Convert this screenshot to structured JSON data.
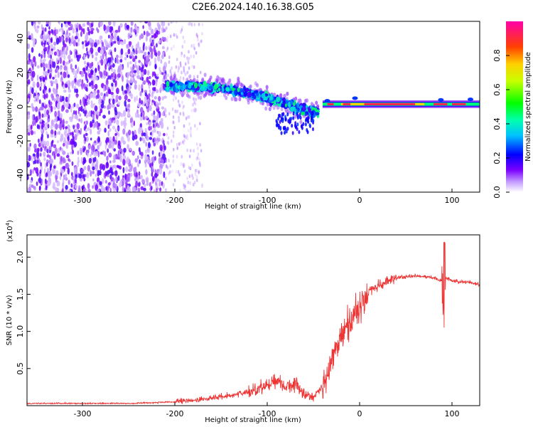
{
  "title": "C2E6.2024.140.16.38.G05",
  "chart_data": [
    {
      "type": "heatmap",
      "panel": "spectrogram",
      "xlabel": "Height of straight line (km)",
      "ylabel": "Frequency (Hz)",
      "xlim": [
        -360,
        130
      ],
      "ylim": [
        -50,
        50
      ],
      "xticks": [
        -300,
        -200,
        -100,
        0,
        100
      ],
      "xtick_labels": [
        "-300",
        "-200",
        "-100",
        "0",
        "100"
      ],
      "yticks": [
        -40,
        -20,
        0,
        20,
        40
      ],
      "ytick_labels": [
        "-40",
        "-20",
        "0",
        "20",
        "40"
      ],
      "colorbar": {
        "label": "Normalized spectral amplitude",
        "range": [
          0,
          1
        ],
        "ticks": [
          0.0,
          0.2,
          0.4,
          0.6,
          0.8
        ],
        "tick_labels": [
          "0.0",
          "0.2",
          "0.4",
          "0.6",
          "0.8"
        ],
        "colors": [
          "#ffffff",
          "#7a00ff",
          "#0000ff",
          "#00ffff",
          "#00ff00",
          "#ffff00",
          "#ff8000",
          "#ff0000",
          "#ff00aa"
        ]
      },
      "features": [
        {
          "name": "noise",
          "x_range": [
            -360,
            -210
          ],
          "freq_range": [
            -50,
            50
          ],
          "amplitude": 0.08
        },
        {
          "name": "sparse-noise",
          "x_range": [
            -210,
            -170
          ],
          "freq_range": [
            -50,
            50
          ],
          "amplitude": 0.03
        },
        {
          "name": "descending-trace",
          "x": [
            -210,
            -180,
            -150,
            -120,
            -100,
            -80,
            -60,
            -45
          ],
          "freq": [
            12,
            12,
            11,
            8,
            5,
            2,
            -2,
            -3
          ],
          "amplitude": 0.35
        },
        {
          "name": "carrier",
          "x_range": [
            -40,
            130
          ],
          "freq": 1.5,
          "amplitude": 0.95
        }
      ]
    },
    {
      "type": "line",
      "panel": "snr",
      "xlabel": "Height of straight line (km)",
      "ylabel": "SNR (10 * v/v)",
      "yscale_label": "(x10",
      "yscale_exp": "4",
      "xlim": [
        -360,
        130
      ],
      "ylim": [
        0,
        2.3
      ],
      "xticks": [
        -300,
        -200,
        -100,
        0,
        100
      ],
      "xtick_labels": [
        "-300",
        "-200",
        "-100",
        "0",
        "100"
      ],
      "yticks": [
        0.5,
        1.0,
        1.5,
        2.0
      ],
      "ytick_labels": [
        "0.5",
        "1.0",
        "1.5",
        "2.0"
      ],
      "color": "#ee3333",
      "series": [
        {
          "name": "SNR",
          "x": [
            -360,
            -300,
            -250,
            -200,
            -180,
            -150,
            -120,
            -100,
            -90,
            -80,
            -70,
            -60,
            -50,
            -40,
            -30,
            -20,
            -10,
            0,
            10,
            20,
            30,
            40,
            60,
            80,
            88,
            92,
            95,
            100,
            110,
            120,
            130
          ],
          "values": [
            0.03,
            0.03,
            0.03,
            0.05,
            0.07,
            0.12,
            0.18,
            0.28,
            0.35,
            0.25,
            0.3,
            0.15,
            0.12,
            0.25,
            0.6,
            0.95,
            1.15,
            1.3,
            1.55,
            1.6,
            1.68,
            1.72,
            1.75,
            1.72,
            1.68,
            1.7,
            1.72,
            1.68,
            1.67,
            1.66,
            1.63
          ]
        }
      ]
    }
  ]
}
